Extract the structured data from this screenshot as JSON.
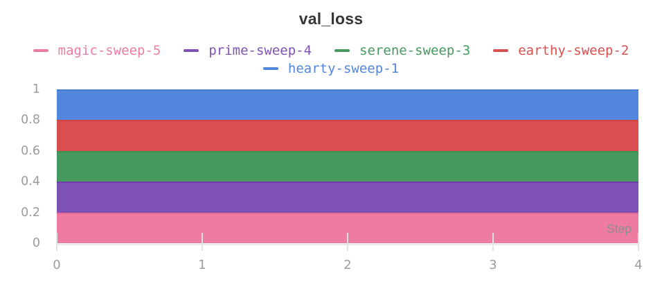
{
  "chart_data": {
    "type": "area",
    "title": "val_loss",
    "xlabel": "Step",
    "x": [
      0,
      1,
      2,
      3,
      4
    ],
    "xlim": [
      0,
      4
    ],
    "ylim": [
      0,
      1
    ],
    "xtick_labels": [
      "0",
      "1",
      "2",
      "3",
      "4"
    ],
    "ytick_labels": [
      "0",
      "0.2",
      "0.4",
      "0.6",
      "0.8",
      "1"
    ],
    "ytick_values": [
      0,
      0.2,
      0.4,
      0.6,
      0.8,
      1
    ],
    "grid": false,
    "legend_position": "top",
    "series": [
      {
        "name": "magic-sweep-5",
        "color": "#ee7ba0",
        "edge": "#e8689a",
        "values": [
          0.2,
          0.2,
          0.2,
          0.2,
          0.2
        ]
      },
      {
        "name": "prime-sweep-4",
        "color": "#7d52b4",
        "edge": "#7040ae",
        "values": [
          0.4,
          0.4,
          0.4,
          0.4,
          0.4
        ]
      },
      {
        "name": "serene-sweep-3",
        "color": "#479a5f",
        "edge": "#3a9153",
        "values": [
          0.6,
          0.6,
          0.6,
          0.6,
          0.6
        ]
      },
      {
        "name": "earthy-sweep-2",
        "color": "#d94f4f",
        "edge": "#d24343",
        "values": [
          0.8,
          0.8,
          0.8,
          0.8,
          0.8
        ]
      },
      {
        "name": "hearty-sweep-1",
        "color": "#5287dd",
        "edge": "#477dd9",
        "values": [
          1.0,
          1.0,
          1.0,
          1.0,
          1.0
        ]
      }
    ],
    "legend_rows": [
      [
        "magic-sweep-5",
        "prime-sweep-4",
        "serene-sweep-3",
        "earthy-sweep-2"
      ],
      [
        "hearty-sweep-1"
      ]
    ]
  }
}
